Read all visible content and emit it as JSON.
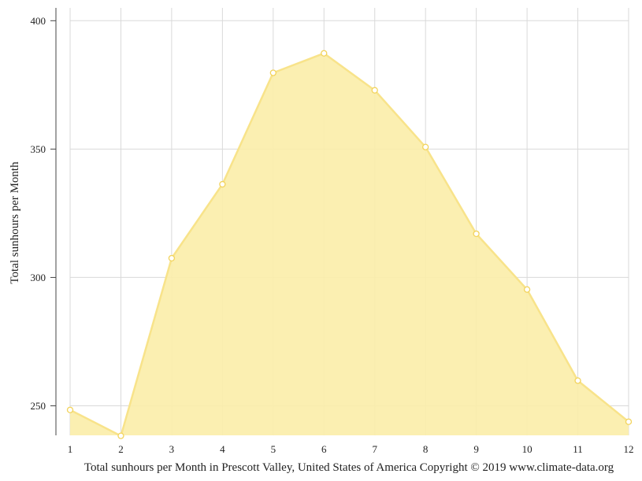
{
  "chart_data": {
    "type": "area",
    "x": [
      1,
      2,
      3,
      4,
      5,
      6,
      7,
      8,
      9,
      10,
      11,
      12
    ],
    "series": [
      {
        "values": [
          248.4,
          238.3,
          307.5,
          336.3,
          379.7,
          387.3,
          372.9,
          350.8,
          317.0,
          295.3,
          259.8,
          243.8
        ]
      }
    ],
    "ylabel": "Total sunhours per Month",
    "caption": "Total sunhours per Month in Prescott Valley, United States of America Copyright © 2019 www.climate-data.org",
    "xlim": [
      1,
      12
    ],
    "ylim": [
      238.5,
      405
    ],
    "yticks": [
      250,
      300,
      350,
      400
    ],
    "xticks": [
      1,
      2,
      3,
      4,
      5,
      6,
      7,
      8,
      9,
      10,
      11,
      12
    ],
    "grid": true,
    "legend": "none",
    "colors": {
      "fill": "#fbeeaa",
      "line": "#f8e38a",
      "marker_stroke": "#f2d35c",
      "grid": "#d9d9d9",
      "axis": "#444444"
    }
  }
}
